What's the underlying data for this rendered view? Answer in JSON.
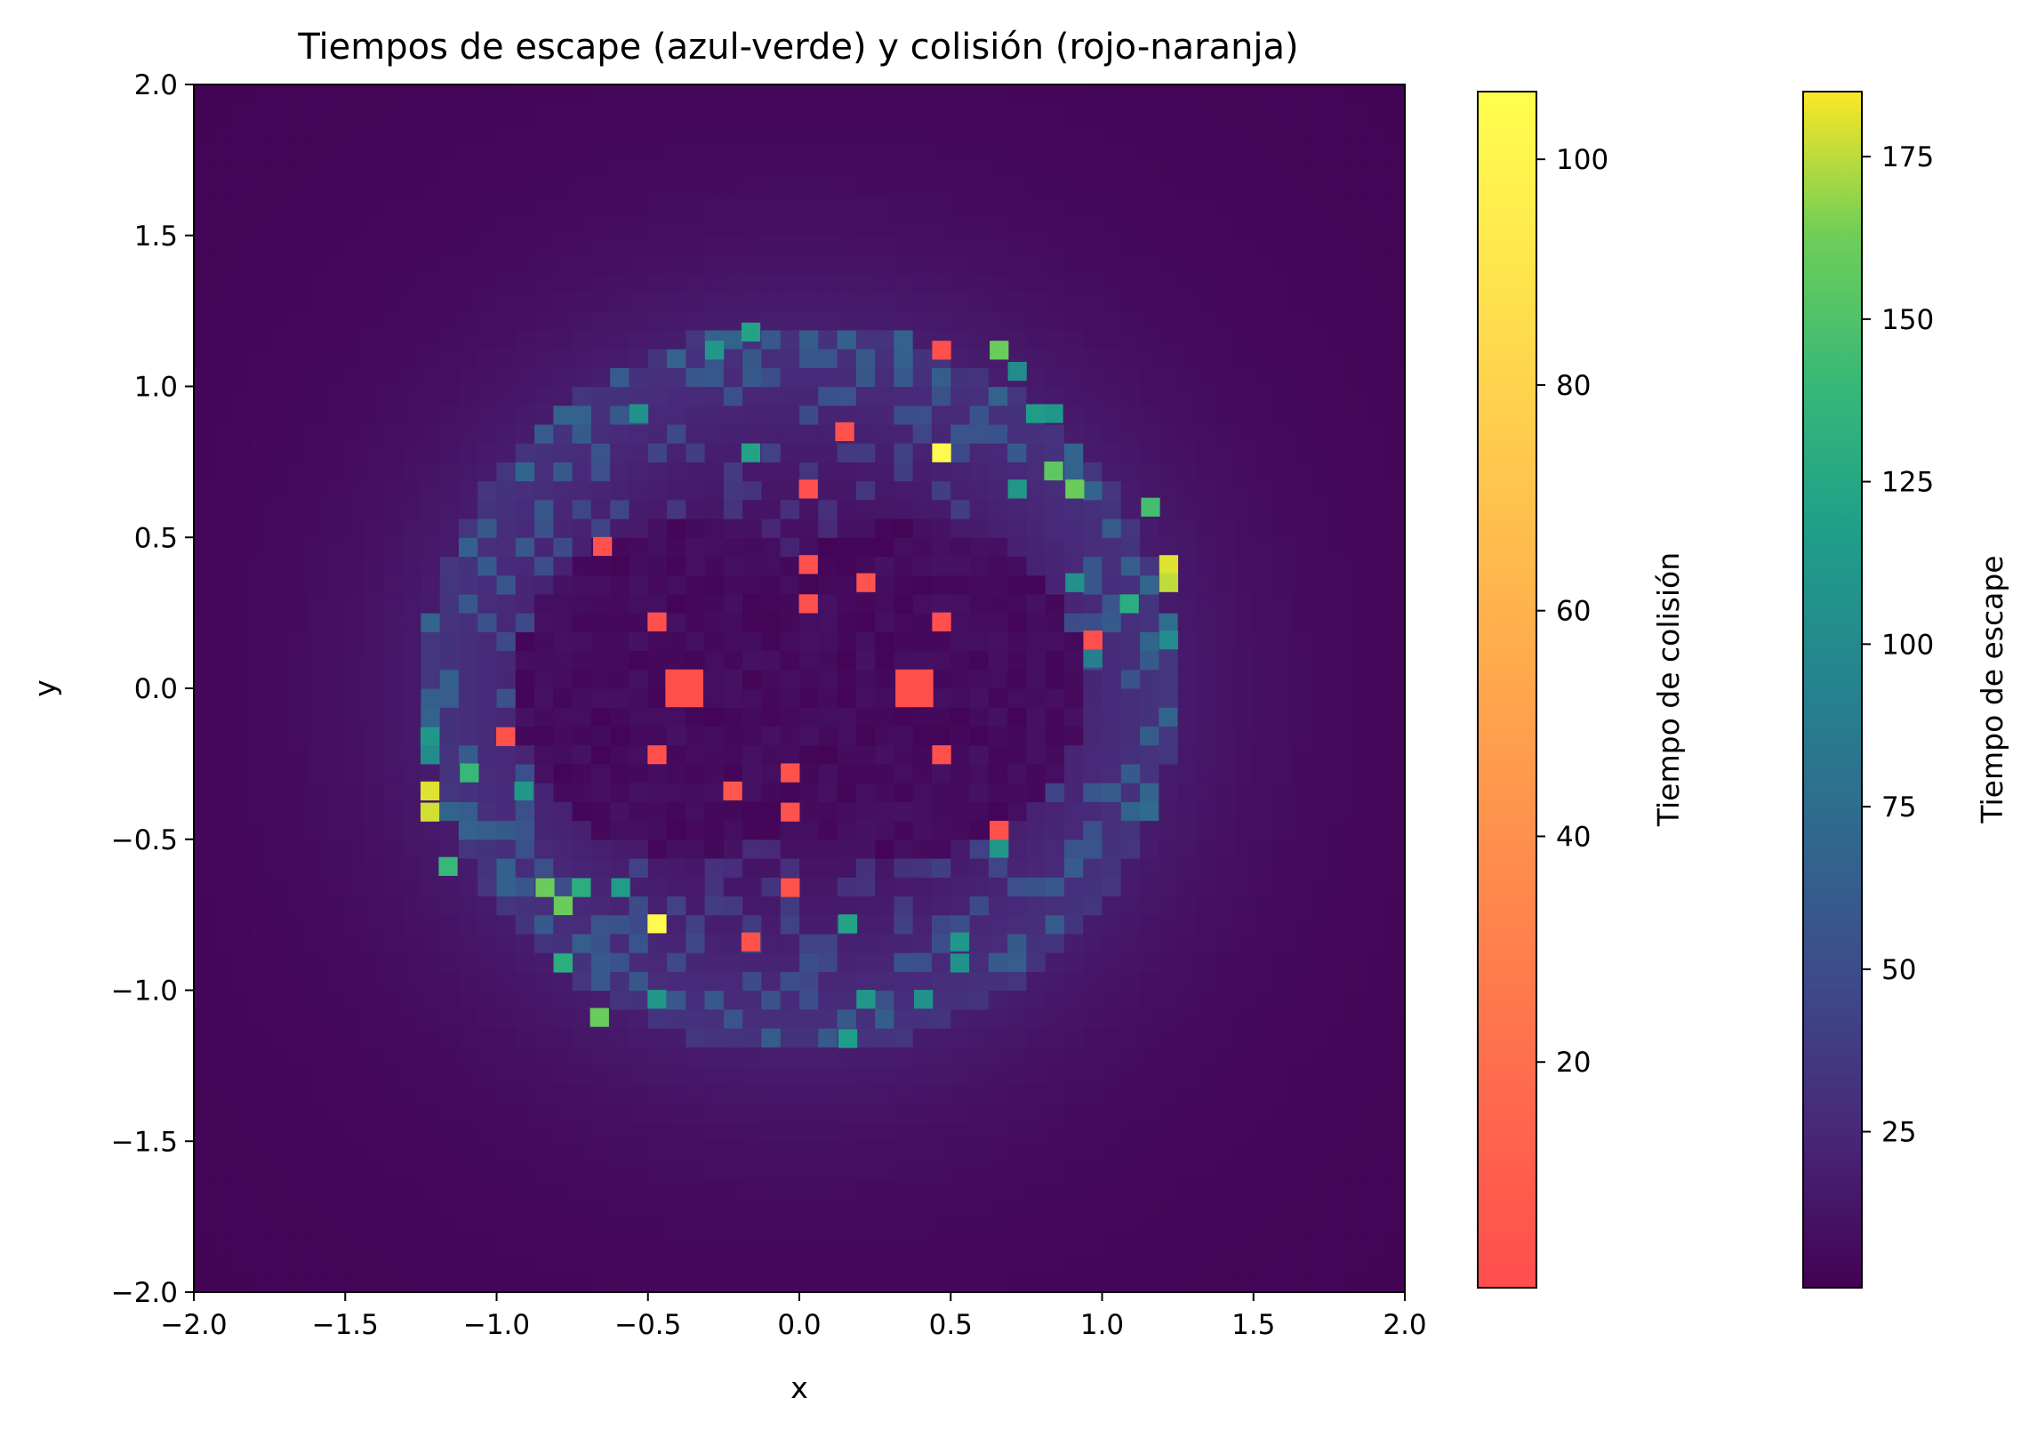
{
  "chart_data": {
    "type": "heatmap",
    "title": "Tiempos de escape (azul-verde) y colisión (rojo-naranja)",
    "xlabel": "x",
    "ylabel": "y",
    "xlim": [
      -2.0,
      2.0
    ],
    "ylim": [
      -2.0,
      2.0
    ],
    "x_ticks": [
      "−2.0",
      "−1.5",
      "−1.0",
      "−0.5",
      "0.0",
      "0.5",
      "1.0",
      "1.5",
      "2.0"
    ],
    "y_ticks": [
      "−2.0",
      "−1.5",
      "−1.0",
      "−0.5",
      "0.0",
      "0.5",
      "1.0",
      "1.5",
      "2.0"
    ],
    "x_tick_values": [
      -2.0,
      -1.5,
      -1.0,
      -0.5,
      0.0,
      0.5,
      1.0,
      1.5,
      2.0
    ],
    "y_tick_values": [
      -2.0,
      -1.5,
      -1.0,
      -0.5,
      0.0,
      0.5,
      1.0,
      1.5,
      2.0
    ],
    "grid": false,
    "colormaps": {
      "escape": "viridis",
      "collision": "autumn"
    },
    "colorbars": [
      {
        "label": "Tiempo de colisión",
        "colormap": "autumn",
        "range": [
          0,
          106
        ],
        "ticks": [
          "20",
          "40",
          "60",
          "80",
          "100"
        ],
        "tick_values": [
          20,
          40,
          60,
          80,
          100
        ]
      },
      {
        "label": "Tiempo de escape",
        "colormap": "viridis",
        "range": [
          1,
          185
        ],
        "ticks": [
          "25",
          "50",
          "75",
          "100",
          "125",
          "150",
          "175"
        ],
        "tick_values": [
          25,
          50,
          75,
          100,
          125,
          150,
          175
        ]
      }
    ],
    "collision_points": [
      {
        "x": -0.38,
        "y": 0.0,
        "t": 1
      },
      {
        "x": 0.38,
        "y": 0.0,
        "t": 1
      },
      {
        "x": 0.47,
        "y": 1.12,
        "t": 2
      },
      {
        "x": 0.15,
        "y": 0.85,
        "t": 3
      },
      {
        "x": 0.47,
        "y": 0.78,
        "t": 103
      },
      {
        "x": 0.03,
        "y": 0.66,
        "t": 2
      },
      {
        "x": -0.65,
        "y": 0.47,
        "t": 3
      },
      {
        "x": 0.03,
        "y": 0.41,
        "t": 2
      },
      {
        "x": 0.22,
        "y": 0.35,
        "t": 4
      },
      {
        "x": 0.03,
        "y": 0.28,
        "t": 2
      },
      {
        "x": -0.47,
        "y": 0.22,
        "t": 2
      },
      {
        "x": 0.47,
        "y": 0.22,
        "t": 2
      },
      {
        "x": 0.97,
        "y": 0.16,
        "t": 2
      },
      {
        "x": -0.97,
        "y": -0.16,
        "t": 3
      },
      {
        "x": -0.47,
        "y": -0.22,
        "t": 2
      },
      {
        "x": 0.47,
        "y": -0.22,
        "t": 2
      },
      {
        "x": -0.03,
        "y": -0.28,
        "t": 3
      },
      {
        "x": -0.22,
        "y": -0.34,
        "t": 6
      },
      {
        "x": -0.03,
        "y": -0.41,
        "t": 3
      },
      {
        "x": 0.66,
        "y": -0.47,
        "t": 3
      },
      {
        "x": -0.03,
        "y": -0.66,
        "t": 3
      },
      {
        "x": -0.47,
        "y": -0.78,
        "t": 103
      },
      {
        "x": -0.16,
        "y": -0.84,
        "t": 3
      }
    ],
    "escape_highlights": [
      {
        "x": 0.66,
        "y": 1.12,
        "t": 160
      },
      {
        "x": -0.28,
        "y": 1.12,
        "t": 110
      },
      {
        "x": -0.16,
        "y": 1.18,
        "t": 120
      },
      {
        "x": 0.72,
        "y": 1.05,
        "t": 100
      },
      {
        "x": 0.78,
        "y": 0.91,
        "t": 115
      },
      {
        "x": 0.84,
        "y": 0.91,
        "t": 110
      },
      {
        "x": -0.53,
        "y": 0.91,
        "t": 105
      },
      {
        "x": -0.16,
        "y": 0.78,
        "t": 120
      },
      {
        "x": 0.84,
        "y": 0.72,
        "t": 155
      },
      {
        "x": 0.91,
        "y": 0.66,
        "t": 160
      },
      {
        "x": 1.16,
        "y": 0.6,
        "t": 145
      },
      {
        "x": 0.72,
        "y": 0.66,
        "t": 110
      },
      {
        "x": 1.22,
        "y": 0.41,
        "t": 180
      },
      {
        "x": 1.22,
        "y": 0.35,
        "t": 175
      },
      {
        "x": 1.09,
        "y": 0.28,
        "t": 130
      },
      {
        "x": 0.91,
        "y": 0.35,
        "t": 105
      },
      {
        "x": 1.22,
        "y": 0.16,
        "t": 100
      },
      {
        "x": 0.97,
        "y": 0.1,
        "t": 90
      },
      {
        "x": -1.22,
        "y": -0.16,
        "t": 110
      },
      {
        "x": -1.22,
        "y": -0.22,
        "t": 100
      },
      {
        "x": -1.22,
        "y": -0.34,
        "t": 180
      },
      {
        "x": -1.22,
        "y": -0.41,
        "t": 178
      },
      {
        "x": -1.09,
        "y": -0.28,
        "t": 140
      },
      {
        "x": -0.91,
        "y": -0.34,
        "t": 110
      },
      {
        "x": -1.16,
        "y": -0.59,
        "t": 140
      },
      {
        "x": -0.84,
        "y": -0.66,
        "t": 160
      },
      {
        "x": -0.78,
        "y": -0.72,
        "t": 160
      },
      {
        "x": -0.72,
        "y": -0.66,
        "t": 130
      },
      {
        "x": -0.59,
        "y": -0.66,
        "t": 115
      },
      {
        "x": 0.66,
        "y": -0.53,
        "t": 110
      },
      {
        "x": 0.16,
        "y": -0.78,
        "t": 120
      },
      {
        "x": 0.53,
        "y": -0.84,
        "t": 110
      },
      {
        "x": 0.53,
        "y": -0.91,
        "t": 105
      },
      {
        "x": -0.78,
        "y": -0.91,
        "t": 130
      },
      {
        "x": -0.66,
        "y": -1.09,
        "t": 160
      },
      {
        "x": -0.47,
        "y": -1.03,
        "t": 110
      },
      {
        "x": 0.16,
        "y": -1.16,
        "t": 115
      },
      {
        "x": 0.22,
        "y": -1.03,
        "t": 110
      },
      {
        "x": 0.41,
        "y": -1.03,
        "t": 105
      }
    ]
  }
}
